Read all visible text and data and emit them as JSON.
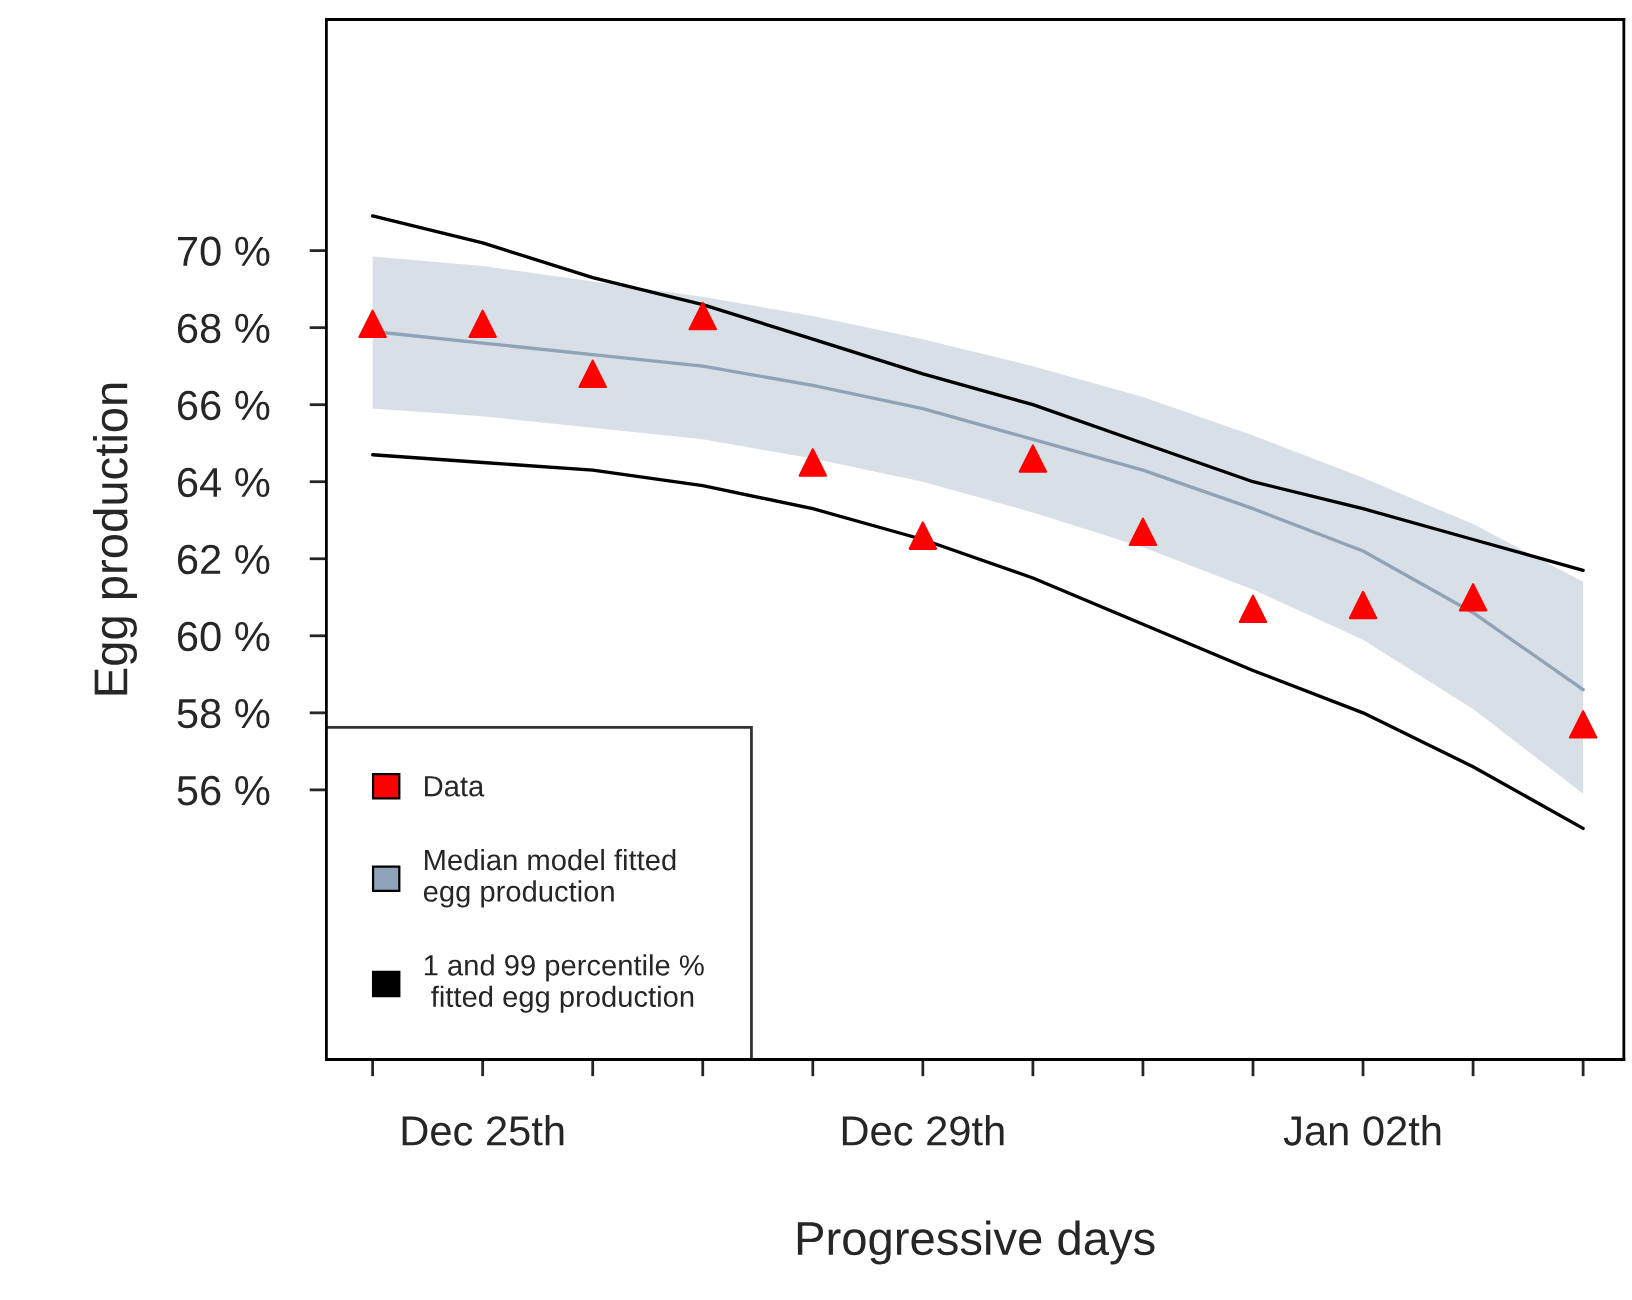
{
  "chart_data": {
    "type": "scatter",
    "xlabel": "Progressive days",
    "ylabel": "Egg production",
    "categories": [
      null,
      "Dec 25th",
      null,
      null,
      null,
      "Dec 29th",
      null,
      null,
      null,
      "Jan 02th",
      null,
      null
    ],
    "ylim": [
      49,
      76
    ],
    "yticks": [
      {
        "value": 56,
        "label": "56 %"
      },
      {
        "value": 58,
        "label": "58 %"
      },
      {
        "value": 60,
        "label": "60 %"
      },
      {
        "value": 62,
        "label": "62 %"
      },
      {
        "value": 64,
        "label": "64 %"
      },
      {
        "value": 66,
        "label": "66 %"
      },
      {
        "value": 68,
        "label": "68 %"
      },
      {
        "value": 70,
        "label": "70 %"
      }
    ],
    "grid": false,
    "legend": "bottom left",
    "series": [
      {
        "name": "Data",
        "color": "#ff0000",
        "marker": "triangle",
        "values": [
          68.1,
          68.1,
          66.8,
          68.3,
          64.5,
          62.6,
          64.6,
          62.7,
          60.7,
          60.8,
          61.0,
          57.7
        ]
      },
      {
        "type": "line",
        "name": "Median model fitted\negg production",
        "color": "#8fa3b8",
        "values": [
          67.9,
          67.6,
          67.3,
          67.0,
          66.5,
          65.9,
          65.1,
          64.3,
          63.3,
          62.2,
          60.6,
          58.6
        ],
        "lower": [
          65.9,
          65.7,
          65.4,
          65.1,
          64.6,
          64.0,
          63.2,
          62.3,
          61.2,
          59.9,
          58.1,
          55.9
        ],
        "upper": [
          69.85,
          69.6,
          69.2,
          68.8,
          68.3,
          67.7,
          67.0,
          66.2,
          65.2,
          64.1,
          62.9,
          61.4
        ]
      },
      {
        "type": "line",
        "name": "1 and 99 percentile %\n fitted egg production",
        "color": "#000000",
        "values": [
          64.7,
          64.5,
          64.3,
          63.9,
          63.3,
          62.5,
          61.5,
          60.3,
          59.1,
          58.0,
          56.6,
          55.0
        ]
      },
      {
        "type": "line",
        "color": "#000000",
        "values": [
          70.9,
          70.2,
          69.3,
          68.6,
          67.7,
          66.8,
          66.0,
          65.0,
          64.0,
          63.3,
          62.5,
          61.7
        ]
      }
    ]
  }
}
